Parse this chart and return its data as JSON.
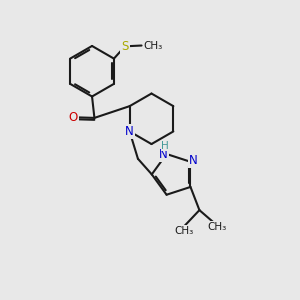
{
  "bg_color": "#e8e8e8",
  "bond_color": "#1a1a1a",
  "bond_width": 1.5,
  "atom_colors": {
    "O": "#cc0000",
    "N": "#0000cc",
    "S": "#aaaa00",
    "H": "#449999"
  },
  "font_size": 8.5,
  "small_font_size": 7.5,
  "xlim": [
    0,
    10
  ],
  "ylim": [
    0,
    10
  ]
}
